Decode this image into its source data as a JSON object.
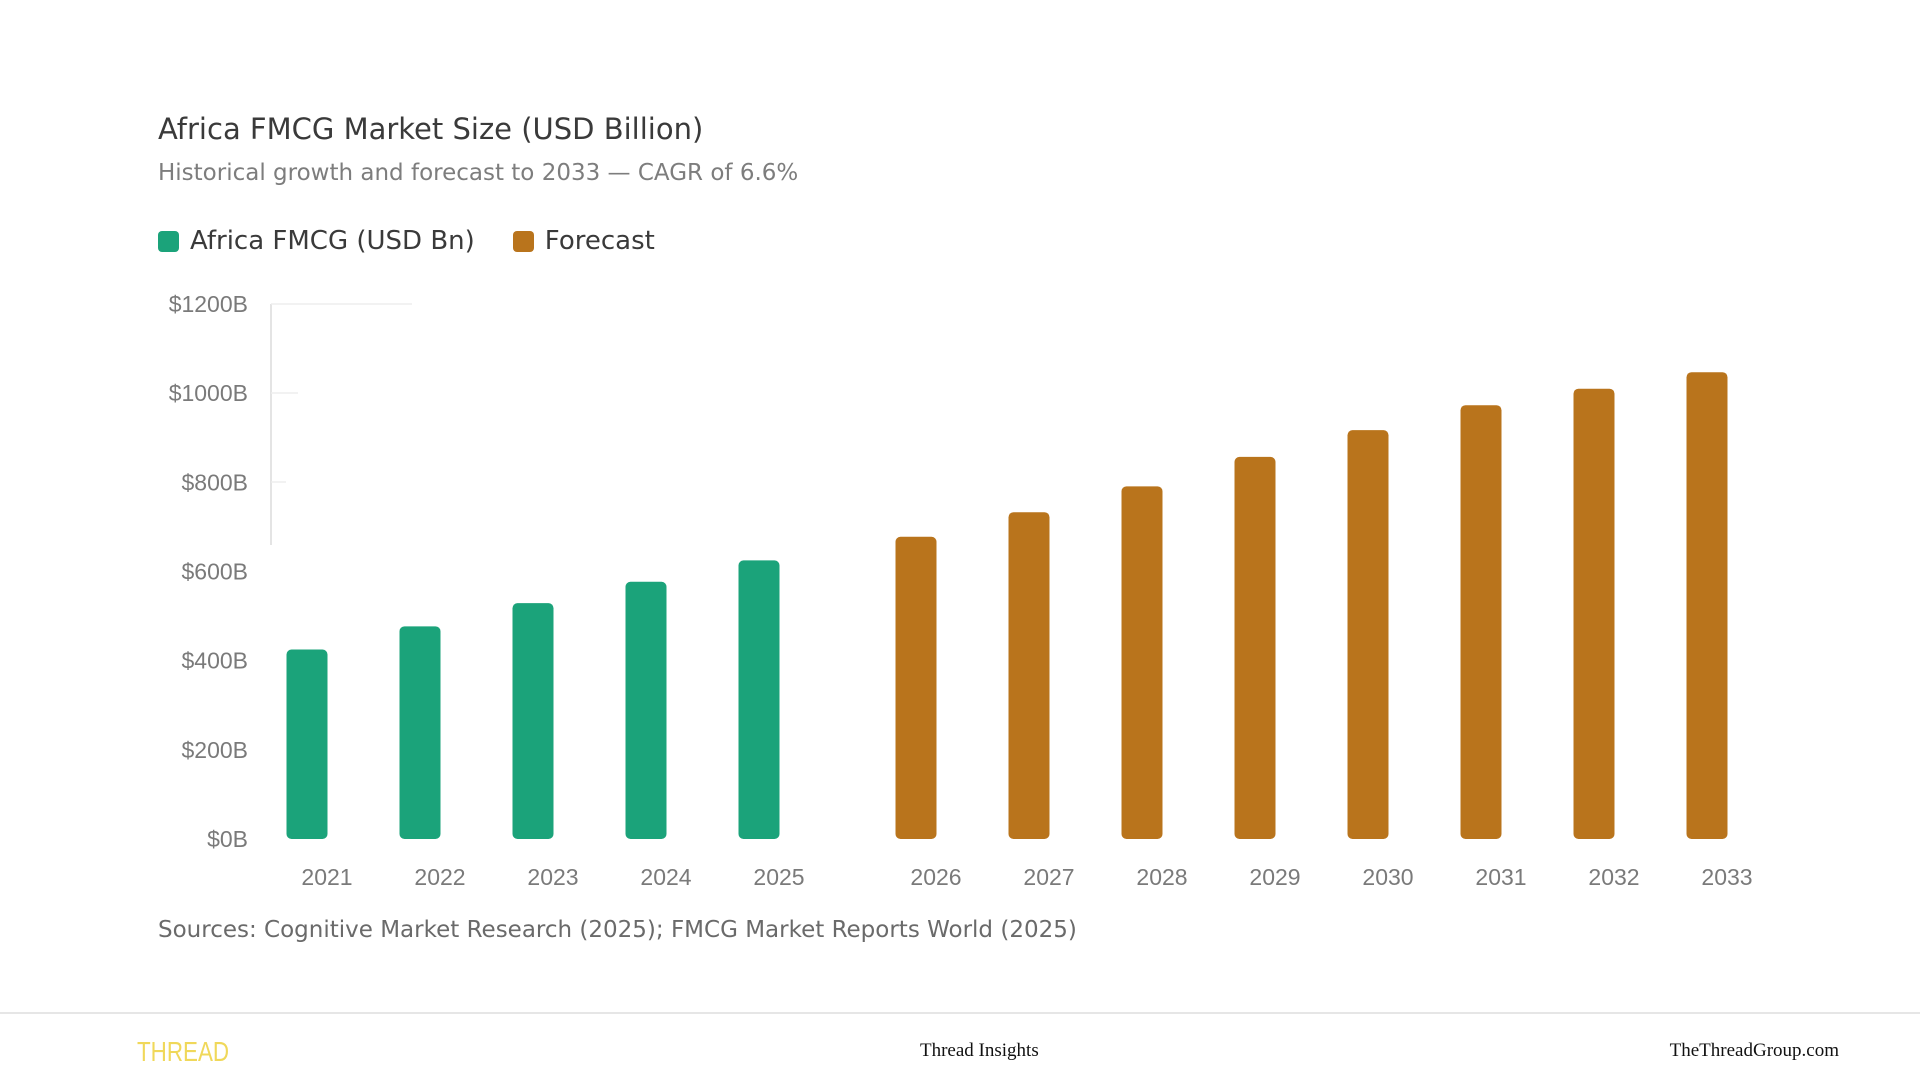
{
  "chart_data": {
    "type": "bar",
    "title": "Africa FMCG Market Size (USD Billion)",
    "subtitle": "Historical growth and forecast to 2033 — CAGR of 6.6%",
    "xlabel": "",
    "ylabel": "",
    "ylim": [
      0,
      1200
    ],
    "yticks": [
      0,
      200,
      400,
      600,
      800,
      1000,
      1200
    ],
    "ytick_labels": [
      "$0B",
      "$200B",
      "$400B",
      "$600B",
      "$800B",
      "$1000B",
      "$1200B"
    ],
    "categories": [
      "2021",
      "2022",
      "2023",
      "2024",
      "2025",
      "2026",
      "2027",
      "2028",
      "2029",
      "2030",
      "2031",
      "2032",
      "2033"
    ],
    "series": [
      {
        "name": "Africa FMCG (USD Bn)",
        "color": "#1ba37a",
        "values": [
          425,
          477,
          529,
          577,
          625,
          null,
          null,
          null,
          null,
          null,
          null,
          null,
          null
        ]
      },
      {
        "name": "Forecast",
        "color": "#b9741c",
        "values": [
          null,
          null,
          null,
          null,
          null,
          678,
          733,
          791,
          857,
          917,
          973,
          1010,
          1047
        ]
      }
    ],
    "legend_position": "top-left",
    "grid": false
  },
  "sources": "Sources: Cognitive Market Research (2025); FMCG Market Reports World (2025)",
  "footer": {
    "brand": "THREAD",
    "center": "Thread Insights",
    "right": "TheThreadGroup.com"
  }
}
